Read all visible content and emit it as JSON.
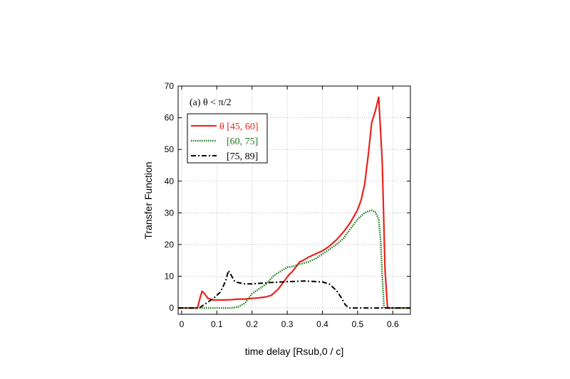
{
  "chart_data": {
    "type": "line",
    "title": "",
    "panel_label": "(a) θ < π/2",
    "xlabel": "time delay [Rsub,0 / c]",
    "ylabel": "Transfer Function",
    "xlim": [
      -0.01,
      0.65
    ],
    "ylim": [
      -2,
      70
    ],
    "xticks": [
      0,
      0.1,
      0.2,
      0.3,
      0.4,
      0.5,
      0.6
    ],
    "xtick_labels": [
      "0",
      "0.1",
      "0.2",
      "0.3",
      "0.4",
      "0.5",
      "0.6"
    ],
    "yticks": [
      0,
      10,
      20,
      30,
      40,
      50,
      60,
      70
    ],
    "ytick_labels": [
      "0",
      "10",
      "20",
      "30",
      "40",
      "50",
      "60",
      "70"
    ],
    "grid": true,
    "legend_position": "top-left",
    "series": [
      {
        "name": "θ [45, 60]",
        "color": "#e8231c",
        "style": "solid",
        "x": [
          -0.01,
          0.045,
          0.052,
          0.058,
          0.065,
          0.075,
          0.09,
          0.1,
          0.12,
          0.14,
          0.16,
          0.18,
          0.2,
          0.22,
          0.24,
          0.255,
          0.265,
          0.275,
          0.285,
          0.295,
          0.305,
          0.315,
          0.325,
          0.335,
          0.345,
          0.36,
          0.38,
          0.4,
          0.42,
          0.44,
          0.46,
          0.48,
          0.5,
          0.51,
          0.52,
          0.53,
          0.54,
          0.55,
          0.56,
          0.57,
          0.578,
          0.585,
          0.65
        ],
        "y": [
          0,
          0,
          3,
          5.3,
          4.5,
          3,
          2.5,
          2.5,
          2.5,
          2.6,
          2.8,
          2.8,
          3,
          3.2,
          3.5,
          4,
          5,
          6,
          7.5,
          9,
          10.5,
          11.5,
          13,
          14.5,
          15,
          16,
          17,
          18,
          19.5,
          21.5,
          24,
          27,
          31,
          34,
          39,
          48,
          58.5,
          62,
          66.5,
          46,
          12,
          0,
          0
        ]
      },
      {
        "name": "[60, 75]",
        "color": "#1e7a1e",
        "style": "dotted",
        "x": [
          -0.01,
          0.1,
          0.14,
          0.16,
          0.18,
          0.2,
          0.22,
          0.24,
          0.26,
          0.28,
          0.3,
          0.32,
          0.34,
          0.36,
          0.38,
          0.4,
          0.42,
          0.44,
          0.46,
          0.48,
          0.5,
          0.52,
          0.53,
          0.54,
          0.55,
          0.56,
          0.565,
          0.57,
          0.575,
          0.65
        ],
        "y": [
          0,
          0,
          0,
          0.3,
          1.5,
          4.5,
          6,
          7.5,
          10,
          11.5,
          12.8,
          13.2,
          14,
          14.5,
          15.5,
          17,
          18.5,
          20,
          22,
          25,
          28,
          30,
          30.5,
          30.8,
          30.3,
          28,
          22,
          10,
          0,
          0
        ]
      },
      {
        "name": "[75, 89]",
        "color": "#000000",
        "style": "dashdot",
        "x": [
          -0.01,
          0.05,
          0.07,
          0.09,
          0.11,
          0.125,
          0.133,
          0.14,
          0.15,
          0.16,
          0.18,
          0.2,
          0.25,
          0.3,
          0.35,
          0.4,
          0.42,
          0.44,
          0.455,
          0.465,
          0.475,
          0.49,
          0.65
        ],
        "y": [
          0,
          0,
          1.5,
          3,
          5,
          8.5,
          11.8,
          10.5,
          8.5,
          8,
          7.6,
          7.6,
          8,
          8.3,
          8.5,
          8.2,
          7.5,
          5.5,
          3,
          1,
          0,
          0,
          0
        ]
      }
    ]
  }
}
